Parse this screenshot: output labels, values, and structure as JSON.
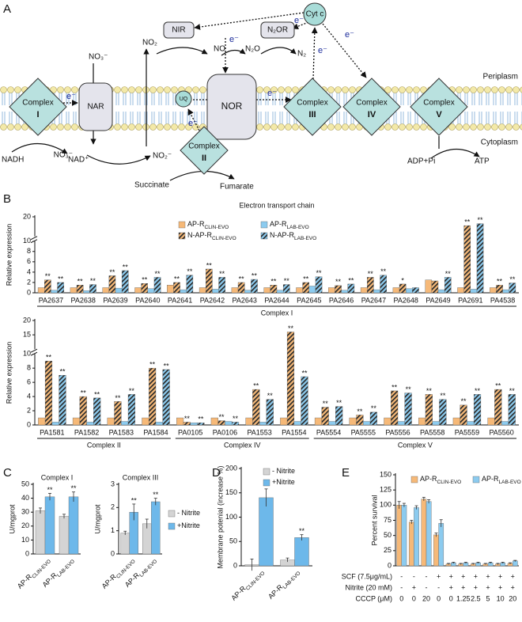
{
  "panel_labels": [
    "A",
    "B",
    "C",
    "D",
    "E"
  ],
  "diagram": {
    "complexes": [
      {
        "name": "Complex",
        "numeral": "I"
      },
      {
        "name": "Complex",
        "numeral": "II"
      },
      {
        "name": "Complex",
        "numeral": "III"
      },
      {
        "name": "Complex",
        "numeral": "IV"
      },
      {
        "name": "Complex",
        "numeral": "V"
      }
    ],
    "boxes": {
      "nar": "NAR",
      "nor": "NOR",
      "nir": "NIR",
      "n2or": "N₂OR"
    },
    "carriers": {
      "uq": "UQ",
      "cytc": "Cyt c"
    },
    "species": {
      "no3_out": "NO₃⁻",
      "no3_in": "NO₃⁻",
      "no2_out": "NO₂",
      "no2_in": "NO₂⁻",
      "no": "NO",
      "n2o": "N₂O",
      "n2": "N₂"
    },
    "electrons": [
      "e⁻",
      "e⁻",
      "e⁻",
      "e⁻",
      "e⁻",
      "e⁻",
      "e⁻"
    ],
    "compartments": {
      "periplasm": "Periplasm",
      "cytoplasm": "Cytoplasm"
    },
    "substrates": {
      "nadh": "NADH",
      "nad": "NAD⁺",
      "succinate": "Succinate",
      "fumarate": "Fumarate",
      "adp": "ADP+Pi",
      "atp": "ATP"
    }
  },
  "chart_data": [
    {
      "type": "bar",
      "title": "Electron transport chain",
      "ylabel": "Relative expression",
      "groups": [
        {
          "name": "Complex I",
          "categories": [
            "PA2637",
            "PA2638",
            "PA2639",
            "PA2640",
            "PA2641",
            "PA2642",
            "PA2643",
            "PA2644",
            "PA2645",
            "PA2646",
            "PA2647",
            "PA2648",
            "PA2649",
            "PA2691",
            "PA4538"
          ]
        }
      ],
      "ylim": [
        0,
        20
      ],
      "yticks": [
        0,
        2,
        4,
        6,
        8,
        10,
        20
      ],
      "y_break": 10,
      "legend": "upper center",
      "series": [
        {
          "name": "AP-R",
          "sub": "CLIN-EVO",
          "color": "#f6b978",
          "hatch": false,
          "values": [
            1.0,
            1.0,
            1.0,
            1.0,
            1.5,
            1.0,
            1.0,
            1.0,
            1.0,
            1.0,
            1.0,
            1.0,
            2.5,
            1.0,
            1.0
          ]
        },
        {
          "name": "N-AP-R",
          "sub": "CLIN-EVO",
          "color": "#f6b978",
          "hatch": true,
          "values": [
            2.5,
            1.5,
            3.3,
            1.8,
            2.0,
            4.6,
            2.0,
            1.5,
            2.0,
            1.4,
            3.0,
            1.7,
            2.3,
            15.5,
            1.5
          ],
          "sig": [
            "**",
            "**",
            "**",
            "**",
            "**",
            "**",
            "**",
            "**",
            "**",
            "**",
            "**",
            "*",
            null,
            "**",
            "**"
          ]
        },
        {
          "name": "AP-R",
          "sub": "LAB-EVO",
          "color": "#8ccbef",
          "hatch": false,
          "values": [
            0.5,
            0.4,
            0.9,
            0.8,
            0.6,
            0.7,
            0.5,
            0.5,
            1.3,
            0.5,
            0.6,
            0.8,
            0.6,
            0.7,
            0.6
          ]
        },
        {
          "name": "N-AP-R",
          "sub": "LAB-EVO",
          "color": "#8ccbef",
          "hatch": true,
          "values": [
            2.0,
            1.6,
            4.3,
            3.0,
            3.4,
            3.0,
            2.6,
            1.6,
            3.1,
            1.7,
            3.4,
            1.0,
            3.0,
            16.5,
            1.9
          ],
          "sig": [
            "**",
            "**",
            "**",
            "**",
            "**",
            "**",
            "**",
            "**",
            "**",
            "**",
            "**",
            null,
            "**",
            "**",
            "**"
          ]
        }
      ]
    },
    {
      "type": "bar",
      "ylabel": "Relative expression",
      "groups": [
        {
          "name": "Complex II",
          "categories": [
            "PA1581",
            "PA1582",
            "PA1583",
            "PA1584"
          ]
        },
        {
          "name": "Complex IV",
          "categories": [
            "PA0105",
            "PA0106",
            "PA1553",
            "PA1554"
          ]
        },
        {
          "name": "Complex V",
          "categories": [
            "PA5554",
            "PA5555",
            "PA5556",
            "PA5558",
            "PA5559",
            "PA5560"
          ]
        }
      ],
      "ylim": [
        0,
        20
      ],
      "yticks": [
        0,
        2,
        4,
        6,
        8,
        10,
        15,
        20
      ],
      "y_break": 10,
      "series": [
        {
          "color": "#f6b978",
          "hatch": false,
          "values": [
            1,
            1,
            1,
            1,
            1,
            1,
            1,
            1,
            1,
            1,
            1,
            1,
            1,
            1
          ]
        },
        {
          "color": "#f6b978",
          "hatch": true,
          "values": [
            9.0,
            4.0,
            3.3,
            8.0,
            0.4,
            0.6,
            5.0,
            16,
            2.5,
            1.4,
            4.8,
            4.3,
            2.8,
            5.0
          ],
          "sig": [
            "**",
            "**",
            "**",
            "**",
            "**",
            "**",
            "**",
            "**",
            "**",
            "**",
            "**",
            "**",
            "**",
            "**"
          ]
        },
        {
          "color": "#8ccbef",
          "hatch": false,
          "values": [
            0.4,
            0.4,
            0.5,
            0.4,
            0.3,
            0.5,
            0.4,
            0.5,
            0.5,
            0.5,
            0.5,
            0.5,
            0.5,
            0.5
          ]
        },
        {
          "color": "#8ccbef",
          "hatch": true,
          "values": [
            7.0,
            3.8,
            4.3,
            7.8,
            0.3,
            0.4,
            3.6,
            6.8,
            2.6,
            1.8,
            4.5,
            3.6,
            4.3,
            4.3
          ],
          "sig": [
            "**",
            "**",
            "**",
            "**",
            "**",
            "**",
            "**",
            "**",
            "**",
            "**",
            "**",
            "**",
            "**",
            "**"
          ]
        }
      ]
    },
    {
      "type": "bar",
      "title": "Complex I",
      "ylabel": "U/mgprot",
      "categories": [
        "AP-R",
        "AP-R"
      ],
      "category_subs": [
        "CLIN-EVO",
        "LAB-EVO"
      ],
      "ylim": [
        0,
        50
      ],
      "yticks": [
        0,
        10,
        20,
        30,
        40,
        50
      ],
      "series": [
        {
          "color": "#d4d4d4",
          "values": [
            31,
            27
          ],
          "errors": [
            2,
            1.5
          ]
        },
        {
          "color": "#6db8ea",
          "values": [
            41,
            41
          ],
          "errors": [
            2.5,
            3.5
          ],
          "sig": [
            "**",
            "**"
          ]
        }
      ]
    },
    {
      "type": "bar",
      "title": "Complex III",
      "ylabel": "U/mgprot",
      "categories": [
        "AP-R",
        "AP-R"
      ],
      "category_subs": [
        "CLIN-EVO",
        "LAB-EVO"
      ],
      "ylim": [
        0,
        3
      ],
      "yticks": [
        0,
        1,
        2,
        3
      ],
      "legend": "center right",
      "series": [
        {
          "name": "- Nitrite",
          "color": "#d4d4d4",
          "values": [
            0.9,
            1.3
          ],
          "errors": [
            0.08,
            0.2
          ]
        },
        {
          "name": "+Nitrite",
          "color": "#6db8ea",
          "values": [
            1.8,
            2.25
          ],
          "errors": [
            0.35,
            0.15
          ],
          "sig": [
            "**",
            "**"
          ]
        }
      ]
    },
    {
      "type": "bar",
      "ylabel": "Membrane potenial (increase %)",
      "categories": [
        "AP-R",
        "AP-R"
      ],
      "category_subs": [
        "CLIN-EVO",
        "LAB-EVO"
      ],
      "ylim": [
        0,
        200
      ],
      "yticks": [
        0,
        50,
        100,
        150,
        200
      ],
      "legend": "upper right",
      "series": [
        {
          "name": "- Nitrite",
          "color": "#d4d4d4",
          "values": [
            2,
            12
          ],
          "errors": [
            12,
            4
          ]
        },
        {
          "name": "+Nitrite",
          "color": "#6db8ea",
          "values": [
            140,
            58
          ],
          "errors": [
            18,
            6
          ],
          "sig": [
            "**",
            "**"
          ]
        }
      ]
    },
    {
      "type": "bar",
      "ylabel": "Percent survival",
      "ylim": [
        0,
        150
      ],
      "yticks": [
        0,
        25,
        50,
        75,
        100,
        125,
        150
      ],
      "legend": "top",
      "series": [
        {
          "name": "AP-R",
          "sub": "CLIN-EVO",
          "color": "#f6b978",
          "values": [
            100,
            72,
            110,
            51,
            3,
            3,
            3,
            3,
            3,
            4
          ],
          "errors": [
            6,
            3,
            3,
            3,
            1,
            1,
            1,
            1,
            1,
            1
          ]
        },
        {
          "name": "AP-R",
          "sub": "LAB-EVO",
          "color": "#8ccbef",
          "values": [
            100,
            96,
            106,
            70,
            5,
            5,
            5,
            5,
            5,
            8
          ],
          "errors": [
            3,
            3,
            3,
            6,
            1,
            1,
            1,
            1,
            1,
            1
          ]
        }
      ],
      "conditions": [
        {
          "label": "SCF (7.5μg/mL)",
          "values": [
            "-",
            "-",
            "-",
            "+",
            "+",
            "+",
            "+",
            "+",
            "+",
            "+"
          ]
        },
        {
          "label": "Nitrite (20 mM)",
          "values": [
            "-",
            "+",
            "-",
            "-",
            "+",
            "+",
            "+",
            "+",
            "+",
            "+"
          ]
        },
        {
          "label": "CCCP (μM)",
          "values": [
            0,
            0,
            20,
            0,
            0,
            1.25,
            2.5,
            5,
            10,
            20
          ]
        }
      ]
    }
  ]
}
